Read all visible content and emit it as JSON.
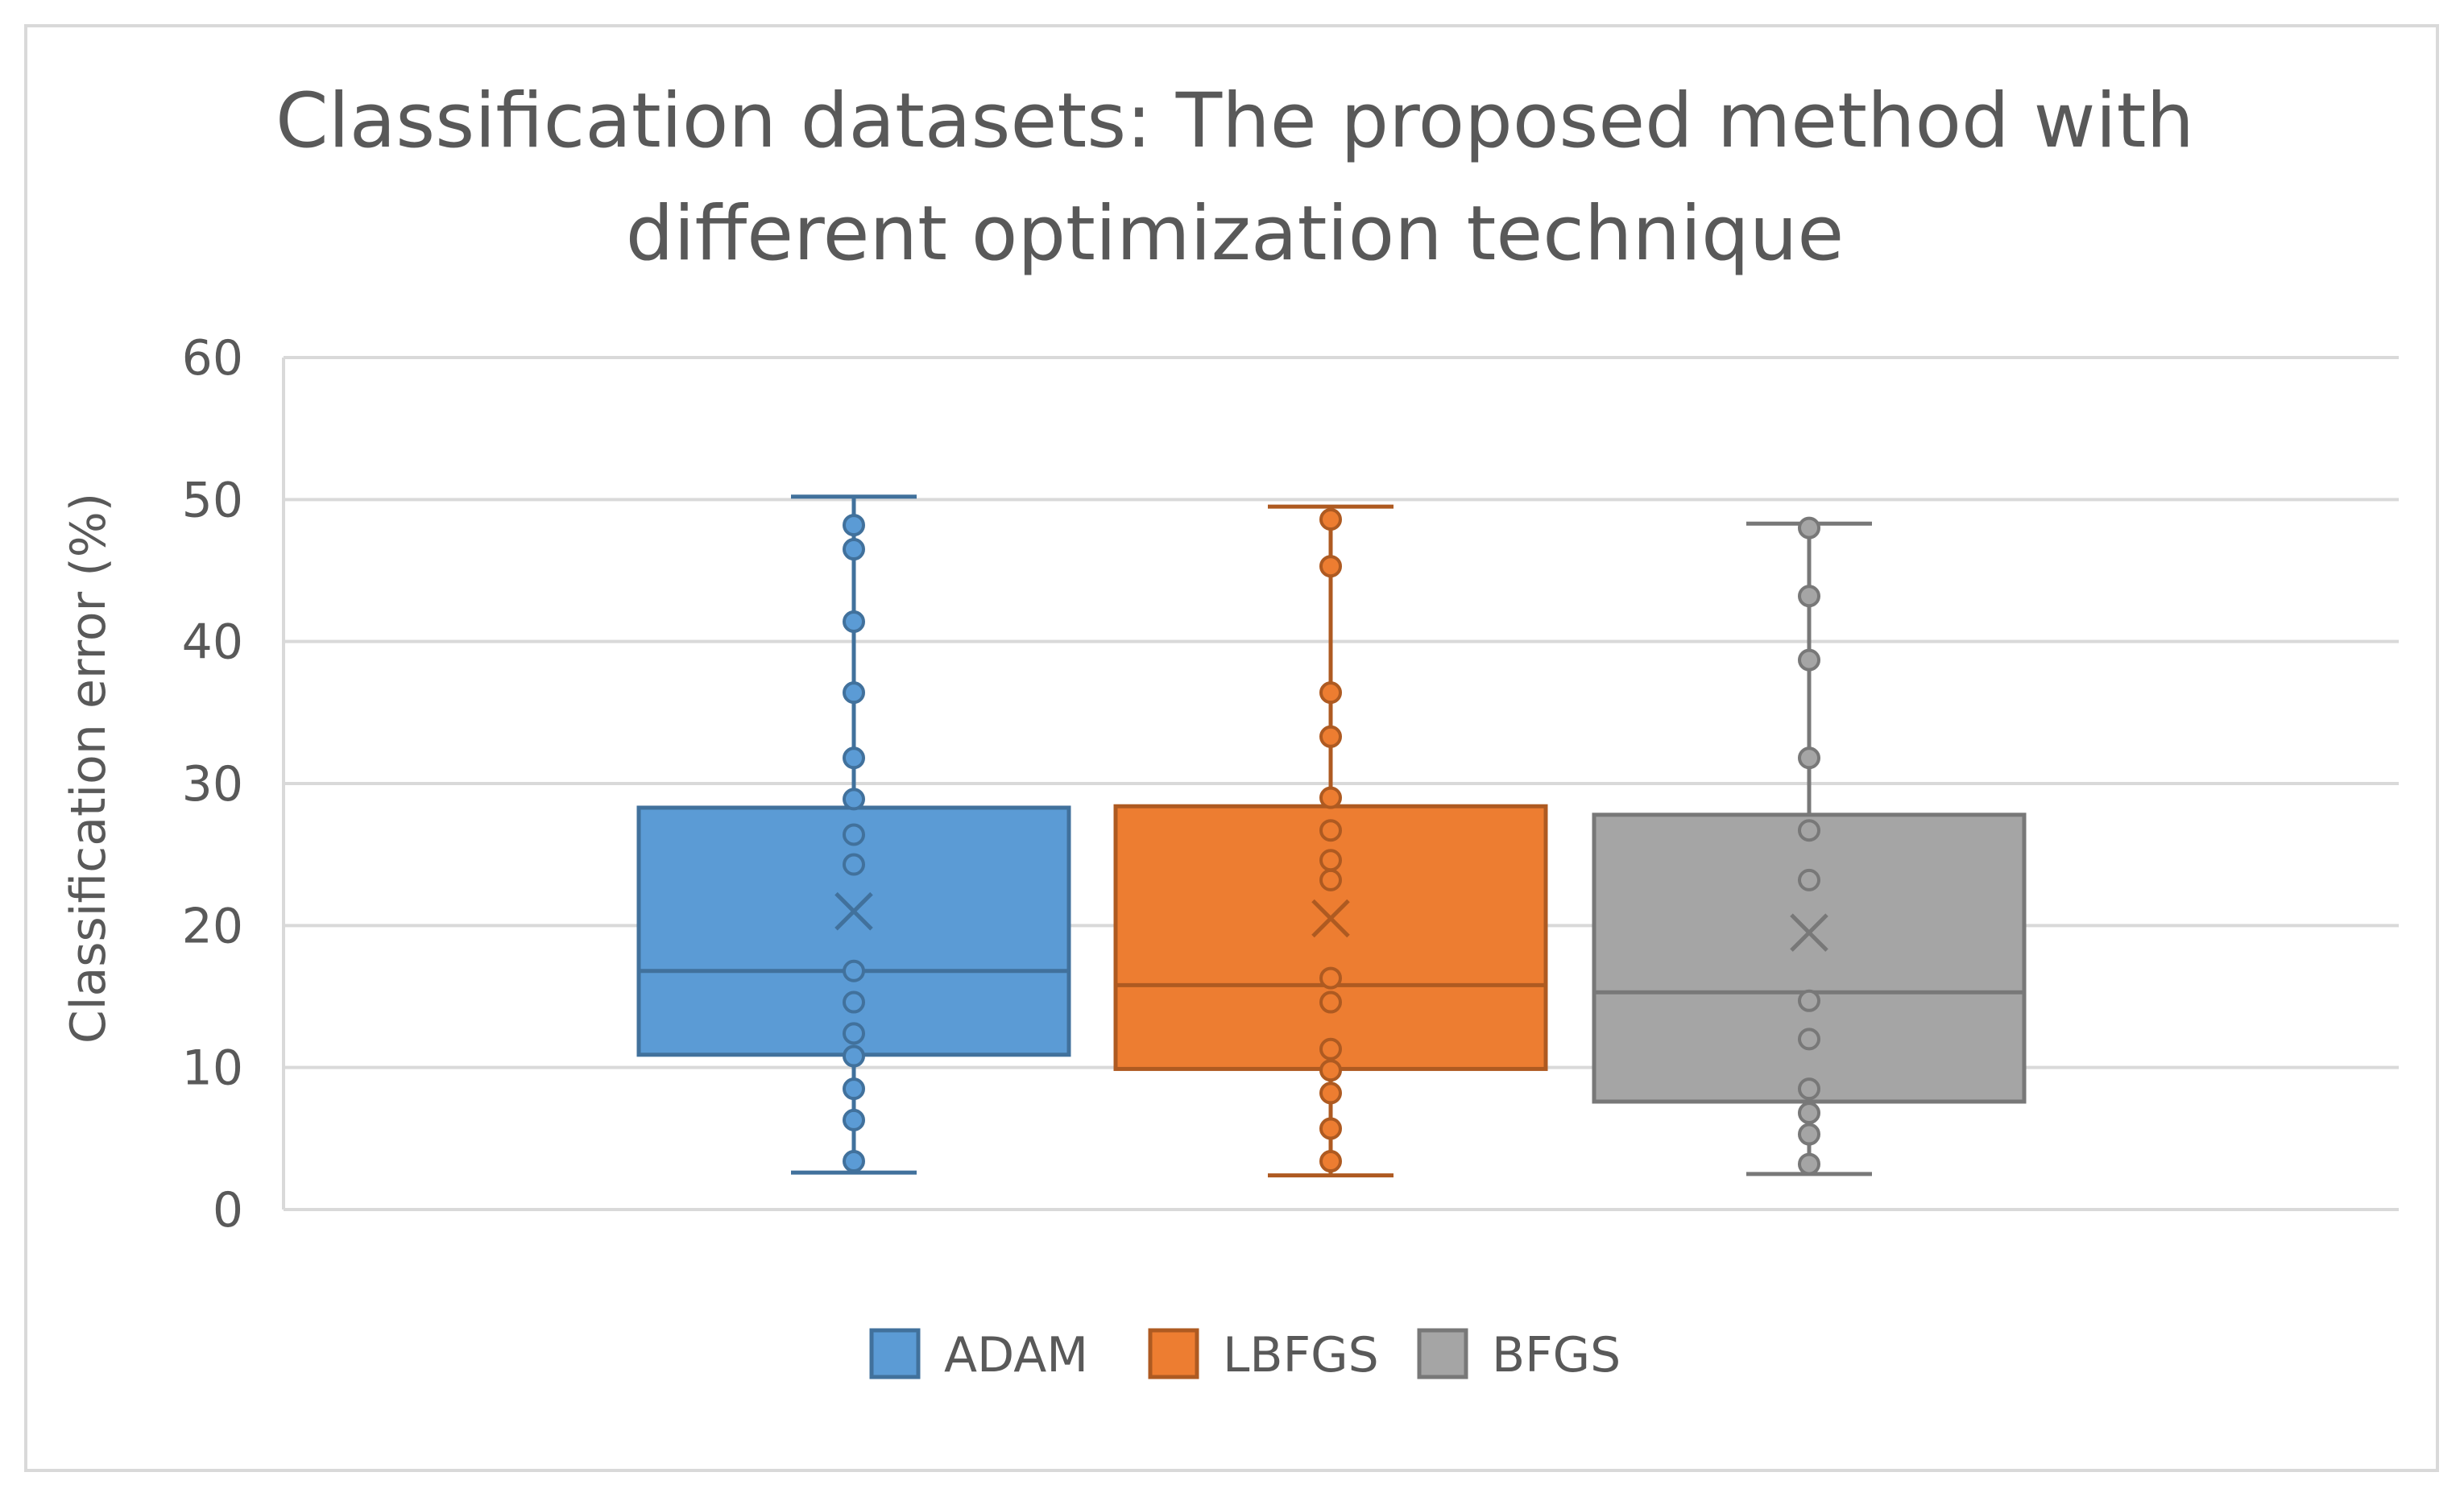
{
  "chart_data": {
    "type": "box",
    "title": "Classification datasets: The proposed method with different optimization technique",
    "title_lines": [
      "Classification datasets: The proposed method with",
      "different optimization technique"
    ],
    "xlabel": "",
    "ylabel": "Classification error (%)",
    "ylim": [
      0,
      60
    ],
    "yticks": [
      0,
      10,
      20,
      30,
      40,
      50,
      60
    ],
    "grid": true,
    "legend_position": "bottom",
    "series": [
      {
        "name": "ADAM",
        "color": "#5b9bd5",
        "edge": "#41719c",
        "min": 2.6,
        "q1": 10.9,
        "median": 16.8,
        "q3": 28.3,
        "max": 50.2,
        "mean": 21.0,
        "points": [
          3.4,
          6.3,
          8.5,
          10.8,
          12.4,
          14.6,
          16.8,
          24.3,
          26.4,
          28.9,
          31.8,
          36.4,
          41.4,
          46.5,
          48.2
        ]
      },
      {
        "name": "LBFGS",
        "color": "#ed7d31",
        "edge": "#ae5a21",
        "min": 2.4,
        "q1": 9.9,
        "median": 15.8,
        "q3": 28.4,
        "max": 49.5,
        "mean": 20.5,
        "points": [
          3.4,
          5.7,
          8.2,
          9.8,
          11.3,
          14.6,
          16.3,
          23.2,
          24.6,
          26.7,
          29.0,
          33.3,
          36.4,
          45.3,
          48.6
        ]
      },
      {
        "name": "BFGS",
        "color": "#a5a5a5",
        "edge": "#787878",
        "min": 2.5,
        "q1": 7.6,
        "median": 15.3,
        "q3": 27.8,
        "max": 48.3,
        "mean": 19.5,
        "points": [
          3.2,
          5.3,
          6.8,
          8.5,
          12.0,
          14.7,
          23.2,
          26.7,
          31.8,
          38.7,
          43.2,
          48.0
        ]
      }
    ]
  }
}
